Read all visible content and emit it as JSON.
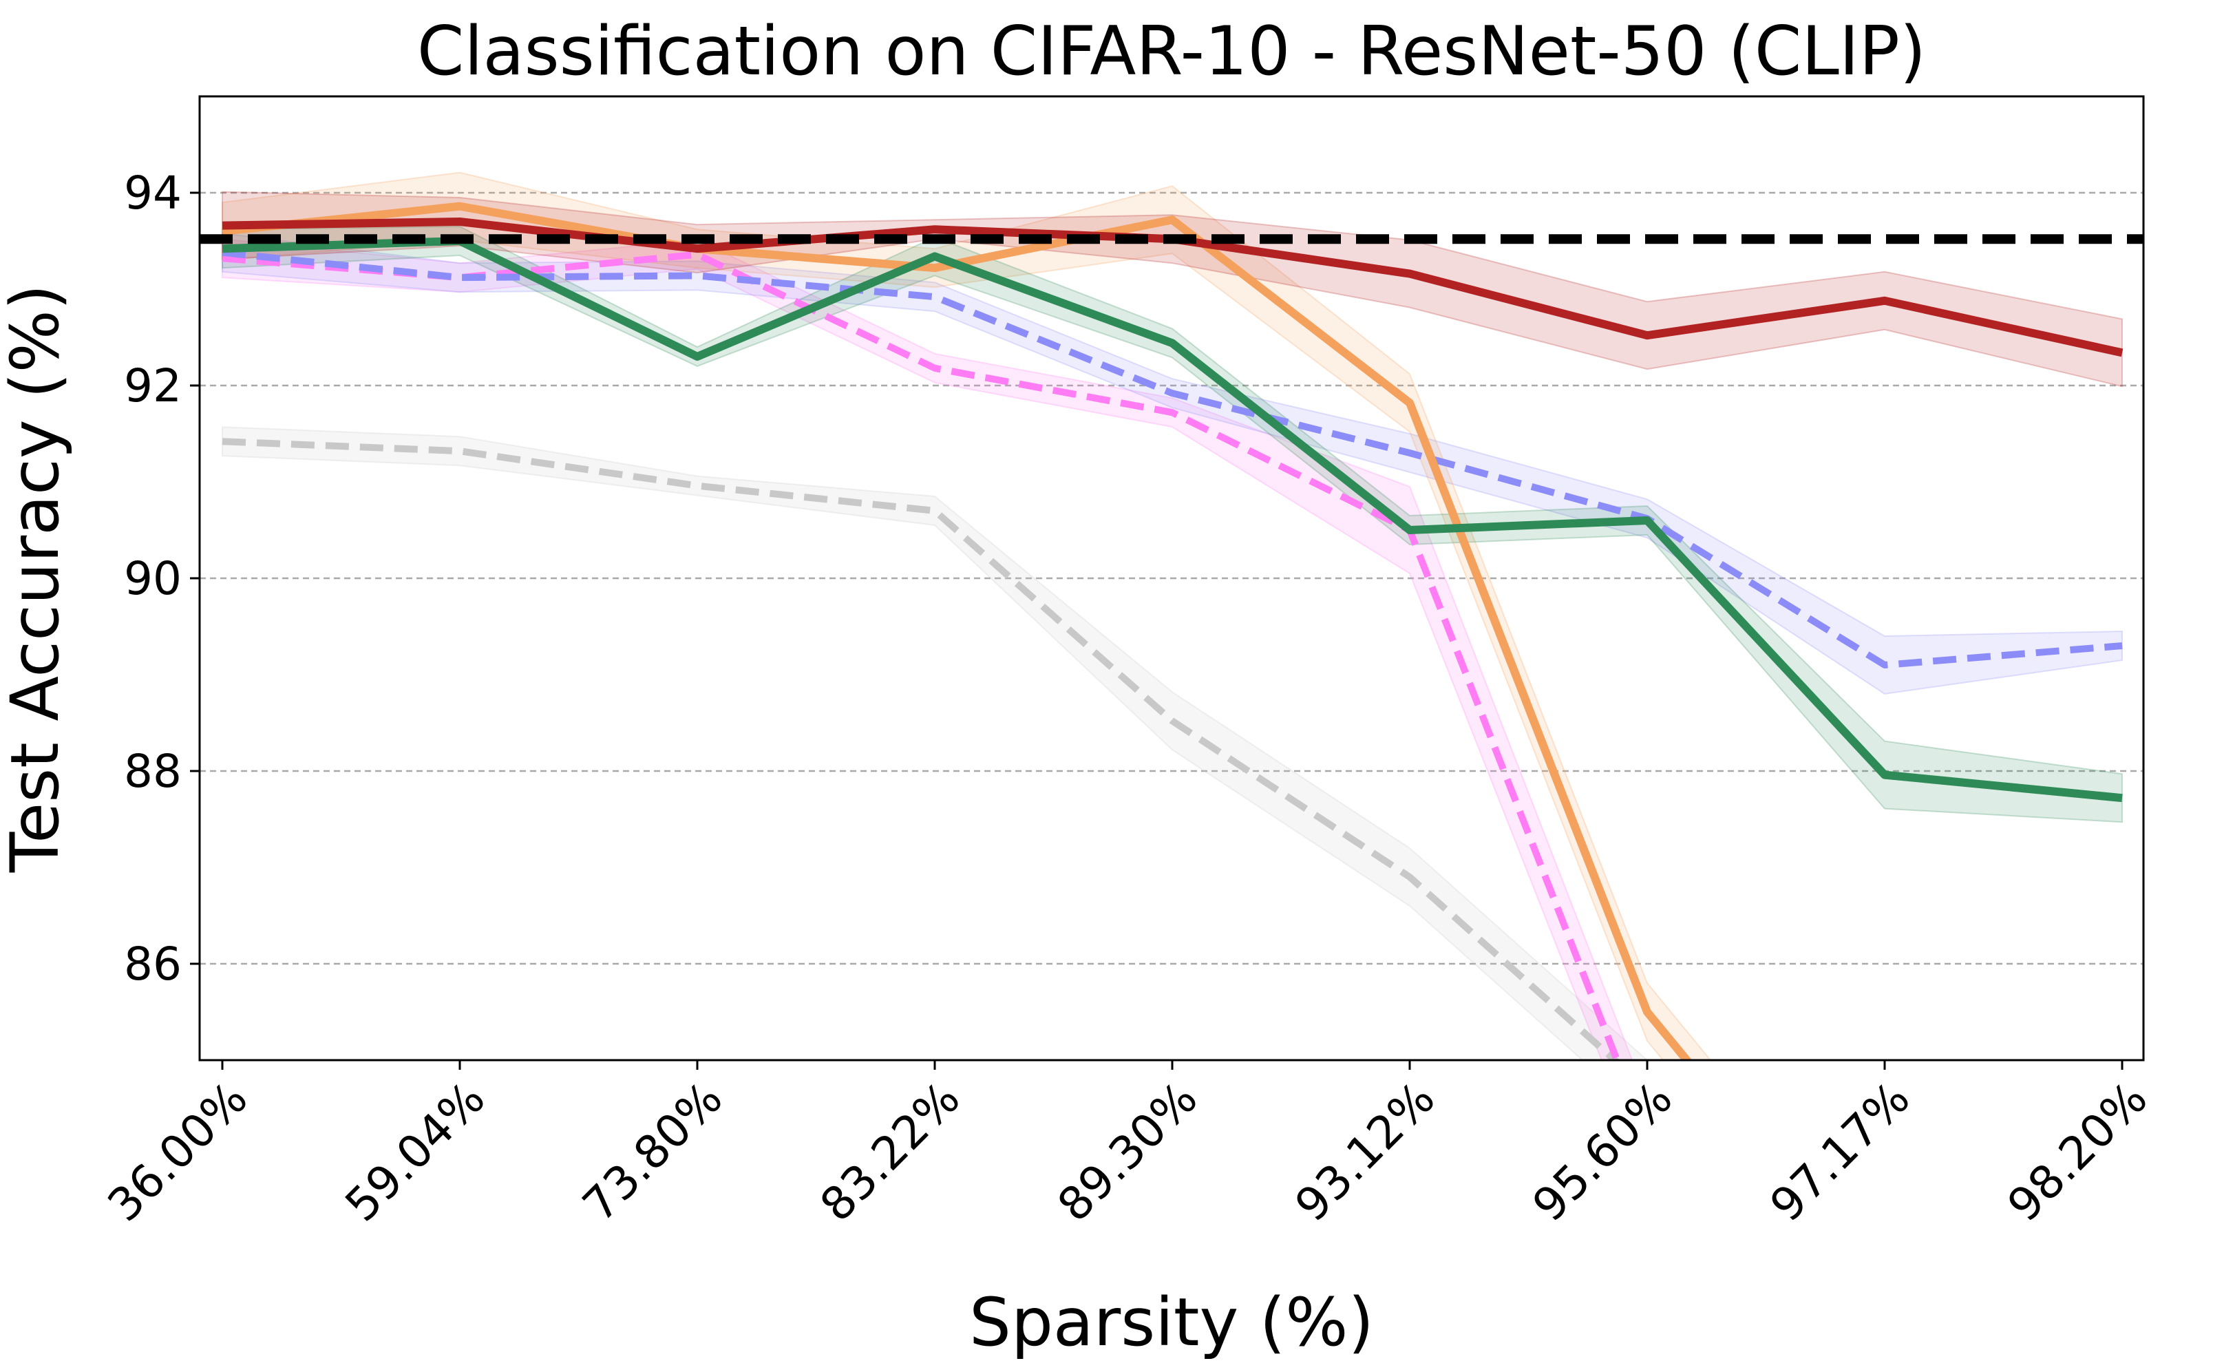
{
  "chart_data": {
    "type": "line",
    "title": "Classification on CIFAR-10 - ResNet-50 (CLIP)",
    "xlabel": "Sparsity (%)",
    "ylabel": "Test Accuracy (%)",
    "categories": [
      "36.00%",
      "59.04%",
      "73.80%",
      "83.22%",
      "89.30%",
      "93.12%",
      "95.60%",
      "97.17%",
      "98.20%"
    ],
    "ylim": [
      85,
      95
    ],
    "yticks": [
      86,
      88,
      90,
      92,
      94
    ],
    "grid": "horizontal, dashed, gray",
    "baseline": {
      "value": 93.52,
      "color": "#000000",
      "style": "dashed"
    },
    "series": [
      {
        "values": [
          91.42,
          91.32,
          90.96,
          90.7,
          88.52,
          86.9,
          84.7,
          null,
          null
        ],
        "band": [
          0.15,
          0.15,
          0.1,
          0.15,
          0.3,
          0.3,
          0.3,
          null,
          null
        ],
        "color": "#c8c8c8",
        "style": "dashed"
      },
      {
        "values": [
          93.32,
          93.12,
          93.36,
          92.18,
          91.72,
          90.5,
          84.2,
          null,
          null
        ],
        "band": [
          0.2,
          0.15,
          0.15,
          0.15,
          0.15,
          0.45,
          0.4,
          null,
          null
        ],
        "color": "#ff7cf5",
        "style": "dashed"
      },
      {
        "values": [
          93.38,
          93.12,
          93.14,
          92.92,
          91.92,
          91.3,
          90.62,
          89.1,
          89.3
        ],
        "band": [
          0.2,
          0.15,
          0.15,
          0.15,
          0.15,
          0.2,
          0.2,
          0.3,
          0.15
        ],
        "color": "#8c8cf8",
        "style": "dashed"
      },
      {
        "values": [
          93.6,
          93.86,
          93.42,
          93.22,
          93.72,
          91.82,
          85.5,
          82.5,
          null
        ],
        "band": [
          0.3,
          0.35,
          0.2,
          0.2,
          0.35,
          0.3,
          0.3,
          0.3,
          null
        ],
        "color": "#f4a15d",
        "style": "solid"
      },
      {
        "values": [
          93.42,
          93.5,
          92.3,
          93.34,
          92.44,
          90.5,
          90.6,
          87.96,
          87.72
        ],
        "band": [
          0.2,
          0.15,
          0.1,
          0.2,
          0.15,
          0.15,
          0.15,
          0.35,
          0.25
        ],
        "color": "#2e8b57",
        "style": "solid"
      },
      {
        "values": [
          93.66,
          93.7,
          93.42,
          93.62,
          93.52,
          93.16,
          92.52,
          92.88,
          92.34
        ],
        "band": [
          0.35,
          0.25,
          0.25,
          0.1,
          0.25,
          0.35,
          0.35,
          0.3,
          0.35
        ],
        "color": "#b22222",
        "style": "solid"
      }
    ]
  }
}
